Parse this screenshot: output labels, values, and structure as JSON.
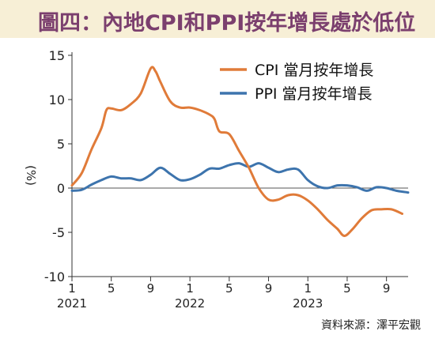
{
  "title": "圖四：內地CPI和PPI按年增長處於低位",
  "source": "資料來源：澤平宏觀",
  "chart_data": {
    "type": "line",
    "ylabel": "(%)",
    "ylim": [
      -10,
      15
    ],
    "yticks": [
      15,
      10,
      5,
      0,
      -5,
      -10
    ],
    "xticks": [
      {
        "label": "1",
        "year": "2021",
        "t": 0
      },
      {
        "label": "5",
        "year": "",
        "t": 4
      },
      {
        "label": "9",
        "year": "",
        "t": 8
      },
      {
        "label": "1",
        "year": "2022",
        "t": 12
      },
      {
        "label": "5",
        "year": "",
        "t": 16
      },
      {
        "label": "9",
        "year": "",
        "t": 20
      },
      {
        "label": "1",
        "year": "2023",
        "t": 24
      },
      {
        "label": "5",
        "year": "",
        "t": 28
      },
      {
        "label": "9",
        "year": "",
        "t": 32
      }
    ],
    "xlim": [
      0,
      34.2
    ],
    "legend_position": "top-right",
    "series": [
      {
        "name": "CPI 當月按年增長",
        "color": "#e07b39",
        "points": [
          [
            0,
            0.3
          ],
          [
            1,
            1.7
          ],
          [
            2,
            4.4
          ],
          [
            3,
            6.8
          ],
          [
            3.5,
            8.8
          ],
          [
            4,
            9.0
          ],
          [
            5,
            8.8
          ],
          [
            6,
            9.5
          ],
          [
            7,
            10.7
          ],
          [
            8,
            13.5
          ],
          [
            8.5,
            13.2
          ],
          [
            9,
            12.0
          ],
          [
            10,
            9.8
          ],
          [
            11,
            9.1
          ],
          [
            12,
            9.1
          ],
          [
            13,
            8.8
          ],
          [
            14,
            8.3
          ],
          [
            14.5,
            7.8
          ],
          [
            15,
            6.4
          ],
          [
            16,
            6.1
          ],
          [
            17,
            4.2
          ],
          [
            18,
            2.3
          ],
          [
            19,
            0.0
          ],
          [
            20,
            -1.3
          ],
          [
            21,
            -1.3
          ],
          [
            22,
            -0.8
          ],
          [
            23,
            -0.8
          ],
          [
            24,
            -1.4
          ],
          [
            25,
            -2.4
          ],
          [
            26,
            -3.6
          ],
          [
            27,
            -4.6
          ],
          [
            27.7,
            -5.4
          ],
          [
            28.5,
            -4.7
          ],
          [
            29.5,
            -3.4
          ],
          [
            30.5,
            -2.5
          ],
          [
            31.5,
            -2.4
          ],
          [
            32.5,
            -2.4
          ],
          [
            33.6,
            -2.9
          ]
        ]
      },
      {
        "name": "PPI 當月按年增長",
        "color": "#3d74ad",
        "points": [
          [
            0,
            -0.3
          ],
          [
            1,
            -0.2
          ],
          [
            2,
            0.4
          ],
          [
            3,
            0.9
          ],
          [
            4,
            1.3
          ],
          [
            5,
            1.1
          ],
          [
            6,
            1.1
          ],
          [
            7,
            0.9
          ],
          [
            8,
            1.5
          ],
          [
            9,
            2.3
          ],
          [
            10,
            1.6
          ],
          [
            11,
            0.9
          ],
          [
            12,
            1.0
          ],
          [
            13,
            1.5
          ],
          [
            14,
            2.2
          ],
          [
            15,
            2.2
          ],
          [
            16,
            2.6
          ],
          [
            17,
            2.8
          ],
          [
            18,
            2.4
          ],
          [
            19,
            2.8
          ],
          [
            20,
            2.3
          ],
          [
            21,
            1.8
          ],
          [
            22,
            2.1
          ],
          [
            23,
            2.1
          ],
          [
            24,
            0.9
          ],
          [
            25,
            0.2
          ],
          [
            26,
            0.0
          ],
          [
            27,
            0.3
          ],
          [
            28,
            0.3
          ],
          [
            29,
            0.1
          ],
          [
            30,
            -0.3
          ],
          [
            31,
            0.1
          ],
          [
            32,
            0.0
          ],
          [
            33,
            -0.3
          ],
          [
            34.2,
            -0.5
          ]
        ]
      }
    ]
  }
}
